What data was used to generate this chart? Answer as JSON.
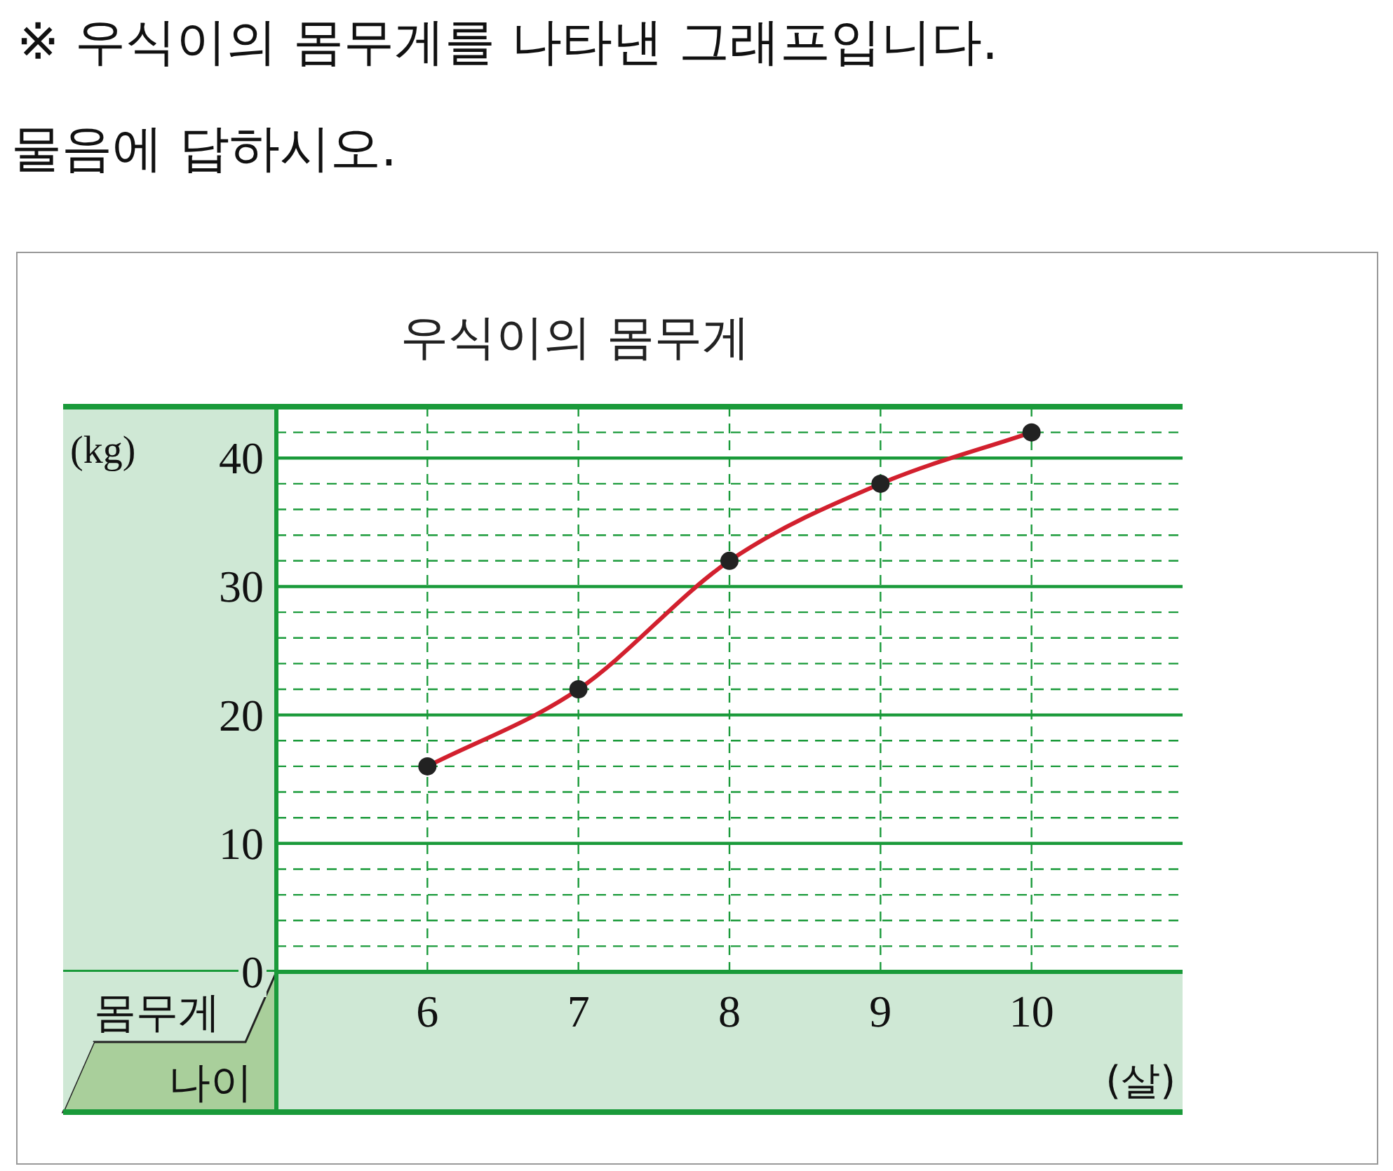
{
  "chart_data": {
    "type": "line",
    "title": "우식이의 몸무게",
    "annotations": [
      "※ 우식이의 몸무게를 나타낸 그래프입니다.",
      "물음에 답하시오.",
      "(kg)",
      "(살)"
    ],
    "xlabel": "나이",
    "ylabel": "몸무게",
    "x": [
      6,
      7,
      8,
      9,
      10
    ],
    "series": [
      {
        "color": "#d2202e",
        "values": [
          16,
          22,
          32,
          38,
          42
        ]
      }
    ],
    "xlim": [
      5,
      11
    ],
    "xticks": [
      6,
      7,
      8,
      9,
      10
    ],
    "ylim": [
      0,
      44
    ],
    "yticks": [
      0,
      {
        "value": 2,
        "label": null
      },
      {
        "value": 4,
        "label": null
      },
      {
        "value": 6,
        "label": null
      },
      {
        "value": 8,
        "label": null
      },
      10,
      {
        "value": 12,
        "label": null
      },
      {
        "value": 14,
        "label": null
      },
      {
        "value": 16,
        "label": null
      },
      {
        "value": 18,
        "label": null
      },
      20,
      {
        "value": 22,
        "label": null
      },
      {
        "value": 24,
        "label": null
      },
      {
        "value": 26,
        "label": null
      },
      {
        "value": 28,
        "label": null
      },
      30,
      {
        "value": 32,
        "label": null
      },
      {
        "value": 34,
        "label": null
      },
      {
        "value": 36,
        "label": null
      },
      {
        "value": 38,
        "label": null
      },
      40,
      {
        "value": 42,
        "label": null
      },
      {
        "value": 44,
        "label": null
      }
    ],
    "grid": true,
    "marker": "circle",
    "line_style": "solid"
  }
}
